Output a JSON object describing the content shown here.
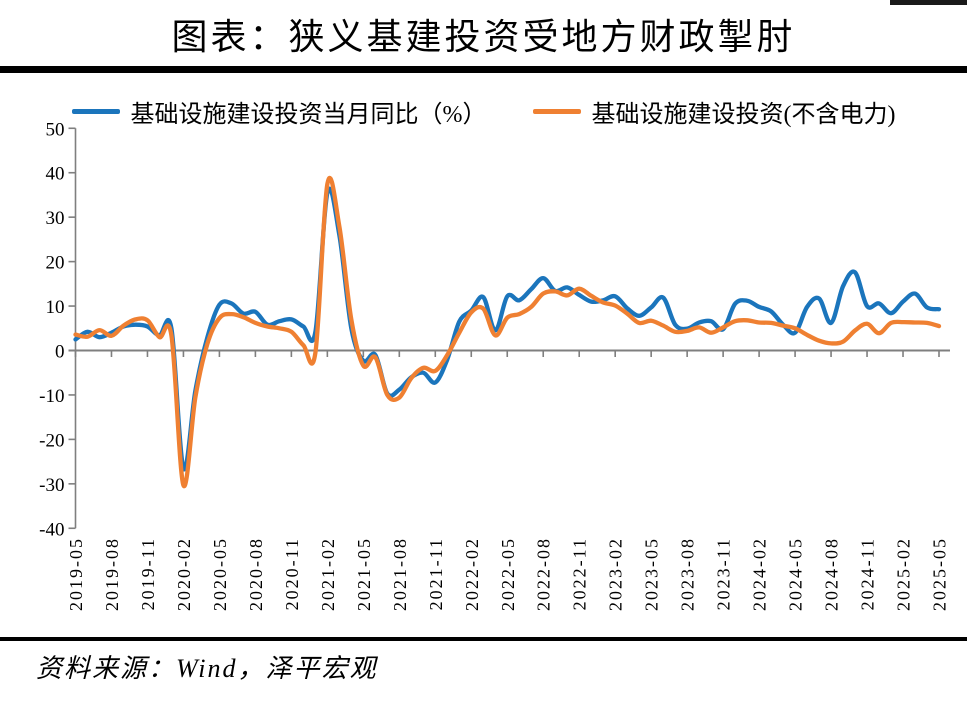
{
  "page": {
    "title": "图表：狭义基建投资受地方财政掣肘",
    "source": "资料来源：Wind，泽平宏观"
  },
  "legend": [
    {
      "label": "基础设施建设投资当月同比（%）",
      "color": "#1B75BC"
    },
    {
      "label": "基础设施建设投资(不含电力)",
      "color": "#EF8032"
    }
  ],
  "colors": {
    "axis": "#7F7F7F",
    "rule": "#000000",
    "background": "#FFFFFF"
  },
  "chart_data": {
    "type": "line",
    "title": "图表：狭义基建投资受地方财政掣肘",
    "xlabel": "",
    "ylabel": "",
    "ylim": [
      -40,
      50
    ],
    "y_ticks": [
      50,
      40,
      30,
      20,
      10,
      0,
      -10,
      -20,
      -30,
      -40
    ],
    "grid": false,
    "legend_position": "top",
    "x_tick_every": 3,
    "x": [
      "2019-05",
      "2019-06",
      "2019-07",
      "2019-08",
      "2019-09",
      "2019-10",
      "2019-11",
      "2019-12",
      "2020-01",
      "2020-02",
      "2020-03",
      "2020-04",
      "2020-05",
      "2020-06",
      "2020-07",
      "2020-08",
      "2020-09",
      "2020-10",
      "2020-11",
      "2020-12",
      "2021-01",
      "2021-02",
      "2021-03",
      "2021-04",
      "2021-05",
      "2021-06",
      "2021-07",
      "2021-08",
      "2021-09",
      "2021-10",
      "2021-11",
      "2021-12",
      "2022-01",
      "2022-02",
      "2022-03",
      "2022-04",
      "2022-05",
      "2022-06",
      "2022-07",
      "2022-08",
      "2022-09",
      "2022-10",
      "2022-11",
      "2022-12",
      "2023-01",
      "2023-02",
      "2023-03",
      "2023-04",
      "2023-05",
      "2023-06",
      "2023-07",
      "2023-08",
      "2023-09",
      "2023-10",
      "2023-11",
      "2023-12",
      "2024-01",
      "2024-02",
      "2024-03",
      "2024-04",
      "2024-05",
      "2024-06",
      "2024-07",
      "2024-08",
      "2024-09",
      "2024-10",
      "2024-11",
      "2024-12",
      "2025-01",
      "2025-02",
      "2025-03",
      "2025-04",
      "2025-05"
    ],
    "series": [
      {
        "name": "基础设施建设投资当月同比（%）",
        "color": "#1B75BC",
        "values": [
          2.5,
          4.2,
          3.0,
          4.0,
          5.4,
          5.8,
          5.4,
          3.4,
          5.0,
          -26.5,
          -9.0,
          3.0,
          10.3,
          10.6,
          8.3,
          8.7,
          5.8,
          6.6,
          7.0,
          5.4,
          4.2,
          35.5,
          26.0,
          5.0,
          -2.3,
          -1.0,
          -9.7,
          -8.8,
          -6.0,
          -5.0,
          -7.2,
          -2.0,
          6.5,
          9.0,
          12.0,
          4.5,
          12.2,
          11.3,
          13.8,
          16.3,
          13.4,
          14.2,
          12.5,
          11.0,
          11.3,
          12.2,
          9.5,
          7.8,
          9.7,
          11.9,
          5.8,
          4.9,
          6.3,
          6.6,
          4.8,
          10.5,
          11.2,
          9.8,
          8.8,
          5.8,
          4.0,
          9.8,
          11.7,
          6.2,
          14.5,
          17.6,
          10.0,
          10.6,
          8.4,
          11.0,
          12.8,
          9.7,
          9.3
        ]
      },
      {
        "name": "基础设施建设投资(不含电力)",
        "color": "#EF8032",
        "values": [
          3.6,
          3.1,
          4.6,
          3.3,
          5.6,
          7.0,
          6.8,
          3.0,
          3.4,
          -30.3,
          -10.5,
          1.5,
          7.3,
          8.2,
          7.5,
          6.2,
          5.4,
          5.0,
          4.2,
          1.2,
          -0.5,
          37.5,
          28.0,
          7.0,
          -3.4,
          -1.5,
          -10.0,
          -10.6,
          -6.2,
          -3.9,
          -4.6,
          -1.0,
          4.0,
          8.6,
          9.4,
          3.4,
          7.4,
          8.2,
          9.8,
          12.8,
          13.3,
          12.4,
          13.9,
          12.3,
          10.8,
          10.1,
          8.3,
          6.2,
          6.7,
          5.6,
          4.2,
          4.4,
          5.2,
          4.0,
          5.2,
          6.6,
          6.8,
          6.3,
          6.2,
          5.6,
          5.0,
          3.5,
          2.2,
          1.6,
          2.0,
          4.5,
          6.0,
          3.9,
          6.2,
          6.4,
          6.3,
          6.2,
          5.5
        ]
      }
    ]
  }
}
